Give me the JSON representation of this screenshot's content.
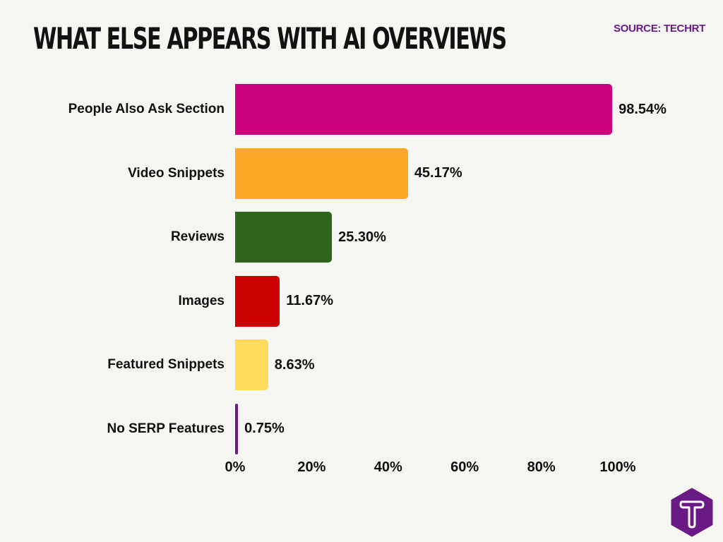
{
  "header": {
    "title": "WHAT ELSE APPEARS WITH AI OVERVIEWS",
    "source": "SOURCE: TECHRT"
  },
  "colors": {
    "background": "#f5f5f1",
    "title": "#121212",
    "source": "#6a1a85",
    "logo": "#6a1a85"
  },
  "chart_data": {
    "type": "bar",
    "orientation": "horizontal",
    "title": "WHAT ELSE APPEARS WITH AI OVERVIEWS",
    "subtitle": "SOURCE: TECHRT",
    "xlabel": "",
    "ylabel": "",
    "xlim": [
      0,
      100
    ],
    "grid": false,
    "legend": null,
    "categories": [
      "People Also Ask Section",
      "Video Snippets",
      "Reviews",
      "Images",
      "Featured Snippets",
      "No SERP Features"
    ],
    "values": [
      98.54,
      45.17,
      25.3,
      11.67,
      8.63,
      0.75
    ],
    "value_labels": [
      "98.54%",
      "45.17%",
      "25.30%",
      "11.67%",
      "8.63%",
      "0.75%"
    ],
    "colors": [
      "#cc007a",
      "#fda726",
      "#2f641c",
      "#cc0000",
      "#ffdb5c",
      "#6a1a85"
    ],
    "x_ticks": [
      0,
      20,
      40,
      60,
      80,
      100
    ],
    "x_tick_labels": [
      "0%",
      "20%",
      "40%",
      "60%",
      "80%",
      "100%"
    ]
  },
  "logo": {
    "letter": "T",
    "name": "techrt-logo"
  }
}
